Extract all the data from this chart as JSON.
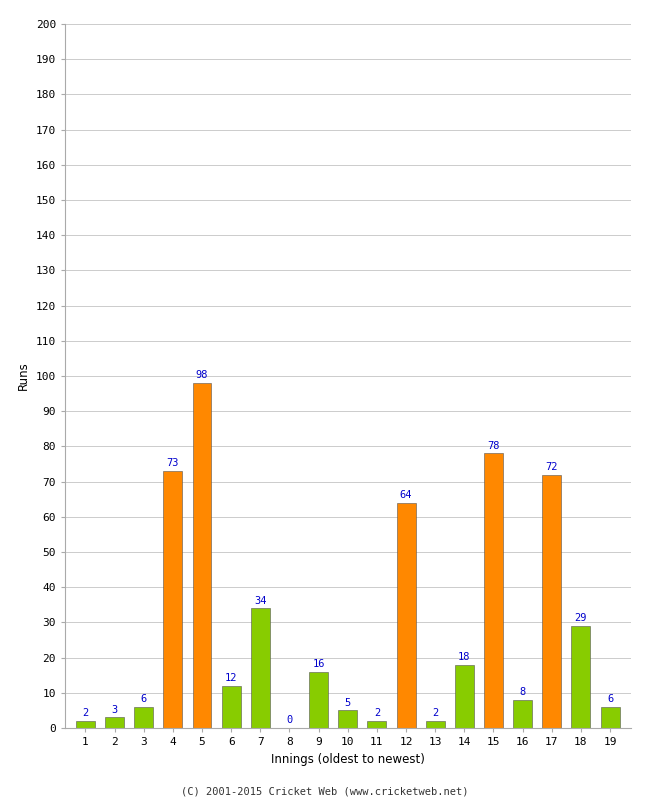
{
  "xlabel": "Innings (oldest to newest)",
  "ylabel": "Runs",
  "innings": [
    1,
    2,
    3,
    4,
    5,
    6,
    7,
    8,
    9,
    10,
    11,
    12,
    13,
    14,
    15,
    16,
    17,
    18,
    19
  ],
  "values": [
    2,
    3,
    6,
    73,
    98,
    12,
    34,
    0,
    16,
    5,
    2,
    64,
    2,
    18,
    78,
    8,
    72,
    29,
    6
  ],
  "colors": [
    "#88cc00",
    "#88cc00",
    "#88cc00",
    "#ff8800",
    "#ff8800",
    "#88cc00",
    "#88cc00",
    "#88cc00",
    "#88cc00",
    "#88cc00",
    "#88cc00",
    "#ff8800",
    "#88cc00",
    "#88cc00",
    "#ff8800",
    "#88cc00",
    "#ff8800",
    "#88cc00",
    "#88cc00"
  ],
  "ylim": [
    0,
    200
  ],
  "yticks": [
    0,
    10,
    20,
    30,
    40,
    50,
    60,
    70,
    80,
    90,
    100,
    110,
    120,
    130,
    140,
    150,
    160,
    170,
    180,
    190,
    200
  ],
  "label_color": "#0000cc",
  "footer": "(C) 2001-2015 Cricket Web (www.cricketweb.net)",
  "background_color": "#ffffff",
  "grid_color": "#cccccc",
  "bar_edge_color": "#555555",
  "bar_width": 0.65,
  "fig_width": 6.5,
  "fig_height": 8.0,
  "dpi": 100
}
